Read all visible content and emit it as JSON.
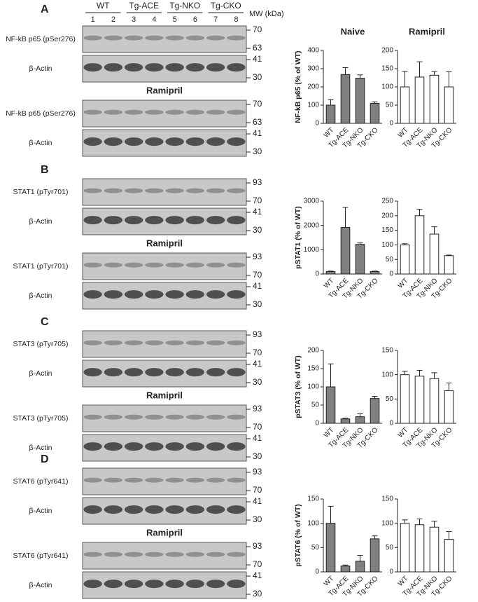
{
  "header": {
    "groups": [
      "WT",
      "Tg-ACE",
      "Tg-NKO",
      "Tg-CKO"
    ],
    "lanes": [
      1,
      2,
      3,
      4,
      5,
      6,
      7,
      8
    ],
    "mw_label": "MW (kDa)"
  },
  "blots": {
    "panels": [
      {
        "letter": "A",
        "blocks": [
          {
            "rows": [
              {
                "label": "NF-kB p65 (pSer276)",
                "markers": [
                  70,
                  63
                ]
              },
              {
                "label": "β-Actin",
                "markers": [
                  41,
                  30
                ]
              }
            ]
          },
          {
            "heading": "Ramipril",
            "rows": [
              {
                "label": "NF-kB p65 (pSer276)",
                "markers": [
                  70,
                  63
                ]
              },
              {
                "label": "β-Actin",
                "markers": [
                  41,
                  30
                ]
              }
            ]
          }
        ]
      },
      {
        "letter": "B",
        "blocks": [
          {
            "rows": [
              {
                "label": "STAT1 (pTyr701)",
                "markers": [
                  93,
                  70
                ]
              },
              {
                "label": "β-Actin",
                "markers": [
                  41,
                  30
                ]
              }
            ]
          },
          {
            "heading": "Ramipril",
            "rows": [
              {
                "label": "STAT1 (pTyr701)",
                "markers": [
                  93,
                  70
                ]
              },
              {
                "label": "β-Actin",
                "markers": [
                  41,
                  30
                ]
              }
            ]
          }
        ]
      },
      {
        "letter": "C",
        "blocks": [
          {
            "rows": [
              {
                "label": "STAT3 (pTyr705)",
                "markers": [
                  93,
                  70
                ]
              },
              {
                "label": "β-Actin",
                "markers": [
                  41,
                  30
                ]
              }
            ]
          },
          {
            "heading": "Ramipril",
            "rows": [
              {
                "label": "STAT3 (pTyr705)",
                "markers": [
                  93,
                  70
                ]
              },
              {
                "label": "β-Actin",
                "markers": [
                  41,
                  30
                ]
              }
            ]
          }
        ]
      },
      {
        "letter": "D",
        "blocks": [
          {
            "rows": [
              {
                "label": "STAT6 (pTyr641)",
                "markers": [
                  93,
                  70
                ]
              },
              {
                "label": "β-Actin",
                "markers": [
                  41,
                  30
                ]
              }
            ]
          },
          {
            "heading": "Ramipril",
            "rows": [
              {
                "label": "STAT6 (pTyr641)",
                "markers": [
                  93,
                  70
                ]
              },
              {
                "label": "β-Actin",
                "markers": [
                  41,
                  30
                ]
              }
            ]
          }
        ]
      }
    ]
  },
  "chart_data": [
    {
      "type": "bar",
      "title": "Naive",
      "ylabel": "NF-kB p65 (% of WT)",
      "categories": [
        "WT",
        "Tg-ACE",
        "Tg-NKO",
        "Tg-CKO"
      ],
      "values": [
        100,
        268,
        248,
        110
      ],
      "errors": [
        30,
        38,
        18,
        8
      ],
      "color": "#808080",
      "ylim": [
        0,
        400
      ],
      "yticks": [
        0,
        100,
        200,
        300,
        400
      ]
    },
    {
      "type": "bar",
      "title": "Ramipril",
      "categories": [
        "WT",
        "Tg-ACE",
        "Tg-NKO",
        "Tg-CKO"
      ],
      "values": [
        100,
        127,
        132,
        100
      ],
      "errors": [
        43,
        42,
        10,
        42
      ],
      "color": "#ffffff",
      "ylim": [
        0,
        200
      ],
      "yticks": [
        0,
        50,
        100,
        150,
        200
      ]
    },
    {
      "type": "bar",
      "ylabel": "pSTAT1 (% of WT)",
      "categories": [
        "WT",
        "Tg-ACE",
        "Tg-NKO",
        "Tg-CKO"
      ],
      "values": [
        100,
        1920,
        1220,
        100
      ],
      "errors": [
        20,
        820,
        60,
        20
      ],
      "color": "#808080",
      "ylim": [
        0,
        3000
      ],
      "yticks": [
        0,
        1000,
        2000,
        3000
      ]
    },
    {
      "type": "bar",
      "categories": [
        "WT",
        "Tg-ACE",
        "Tg-NKO",
        "Tg-CKO"
      ],
      "values": [
        100,
        200,
        137,
        63
      ],
      "errors": [
        4,
        22,
        25,
        2
      ],
      "color": "#ffffff",
      "ylim": [
        0,
        250
      ],
      "yticks": [
        0,
        50,
        100,
        150,
        200,
        250
      ]
    },
    {
      "type": "bar",
      "ylabel": "pSTAT3 (% of WT)",
      "categories": [
        "WT",
        "Tg-ACE",
        "Tg-NKO",
        "Tg-CKO"
      ],
      "values": [
        100,
        12,
        18,
        68
      ],
      "errors": [
        63,
        2,
        8,
        6
      ],
      "color": "#808080",
      "ylim": [
        0,
        200
      ],
      "yticks": [
        0,
        50,
        100,
        150,
        200
      ]
    },
    {
      "type": "bar",
      "categories": [
        "WT",
        "Tg-ACE",
        "Tg-NKO",
        "Tg-CKO"
      ],
      "values": [
        100,
        97,
        92,
        67
      ],
      "errors": [
        7,
        12,
        12,
        16
      ],
      "color": "#ffffff",
      "ylim": [
        0,
        150
      ],
      "yticks": [
        0,
        50,
        100,
        150
      ]
    },
    {
      "type": "bar",
      "ylabel": "pSTAT6 (% of WT)",
      "categories": [
        "WT",
        "Tg-ACE",
        "Tg-NKO",
        "Tg-CKO"
      ],
      "values": [
        100,
        12,
        22,
        68
      ],
      "errors": [
        35,
        2,
        12,
        6
      ],
      "color": "#808080",
      "ylim": [
        0,
        150
      ],
      "yticks": [
        0,
        50,
        100,
        150
      ]
    },
    {
      "type": "bar",
      "categories": [
        "WT",
        "Tg-ACE",
        "Tg-NKO",
        "Tg-CKO"
      ],
      "values": [
        100,
        97,
        92,
        67
      ],
      "errors": [
        7,
        12,
        12,
        16
      ],
      "color": "#ffffff",
      "ylim": [
        0,
        150
      ],
      "yticks": [
        0,
        50,
        100,
        150
      ]
    }
  ]
}
